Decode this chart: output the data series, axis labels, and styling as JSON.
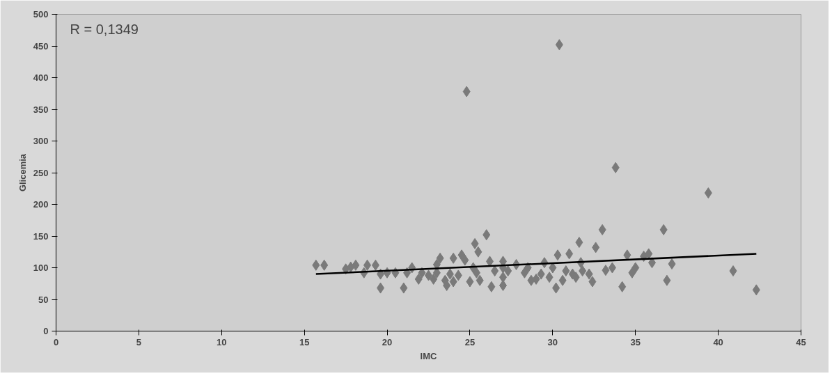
{
  "chart_data": {
    "type": "scatter",
    "xlabel": "IMC",
    "ylabel": "Glicemia",
    "annotations": [
      "R  = 0,1349"
    ],
    "xlim": [
      0,
      45
    ],
    "xticks": [
      0,
      5,
      10,
      15,
      20,
      25,
      30,
      35,
      40,
      45
    ],
    "ylim": [
      0,
      500
    ],
    "yticks": [
      0,
      50,
      100,
      150,
      200,
      250,
      300,
      350,
      400,
      450,
      500
    ],
    "grid": false,
    "marker": "diamond",
    "series": [
      {
        "color": "#7a7a7a",
        "x": [
          15.7,
          16.2,
          17.5,
          17.8,
          18.1,
          18.6,
          18.8,
          19.3,
          19.6,
          19.6,
          20,
          20.5,
          21,
          21.2,
          21.5,
          21.9,
          22.1,
          22.5,
          22.8,
          23,
          23,
          23.2,
          23.5,
          23.6,
          23.8,
          24,
          24,
          24.3,
          24.5,
          24.7,
          24.8,
          25,
          25.2,
          25.3,
          25.4,
          25.5,
          25.6,
          26,
          26.2,
          26.3,
          26.5,
          27,
          27,
          27,
          27,
          27.3,
          27.8,
          28.3,
          28.5,
          28.7,
          29,
          29.3,
          29.5,
          29.8,
          30,
          30.2,
          30.3,
          30.4,
          30.6,
          30.8,
          31,
          31.2,
          31.4,
          31.6,
          31.7,
          31.8,
          32.2,
          32.4,
          32.6,
          33,
          33.2,
          33.6,
          33.8,
          34.2,
          34.5,
          34.8,
          35,
          35.5,
          35.8,
          36,
          36.7,
          36.9,
          37.2,
          39.4,
          40.9,
          42.3
        ],
        "values": [
          104,
          104,
          98,
          101,
          104,
          92,
          104,
          104,
          90,
          68,
          92,
          92,
          68,
          92,
          100,
          82,
          92,
          88,
          82,
          92,
          105,
          115,
          80,
          72,
          90,
          115,
          78,
          88,
          120,
          112,
          378,
          78,
          100,
          138,
          92,
          125,
          80,
          152,
          110,
          70,
          95,
          110,
          72,
          85,
          100,
          95,
          105,
          92,
          100,
          80,
          82,
          90,
          108,
          85,
          100,
          68,
          120,
          452,
          80,
          95,
          122,
          90,
          85,
          140,
          108,
          95,
          90,
          78,
          132,
          160,
          96,
          100,
          258,
          70,
          120,
          92,
          100,
          118,
          122,
          108,
          160,
          80,
          106,
          218,
          95,
          65
        ]
      },
      {
        "type": "line",
        "color": "#000000",
        "line_style": "solid",
        "marker": "none",
        "x": [
          15.7,
          42.3
        ],
        "values": [
          90,
          122
        ]
      }
    ]
  }
}
